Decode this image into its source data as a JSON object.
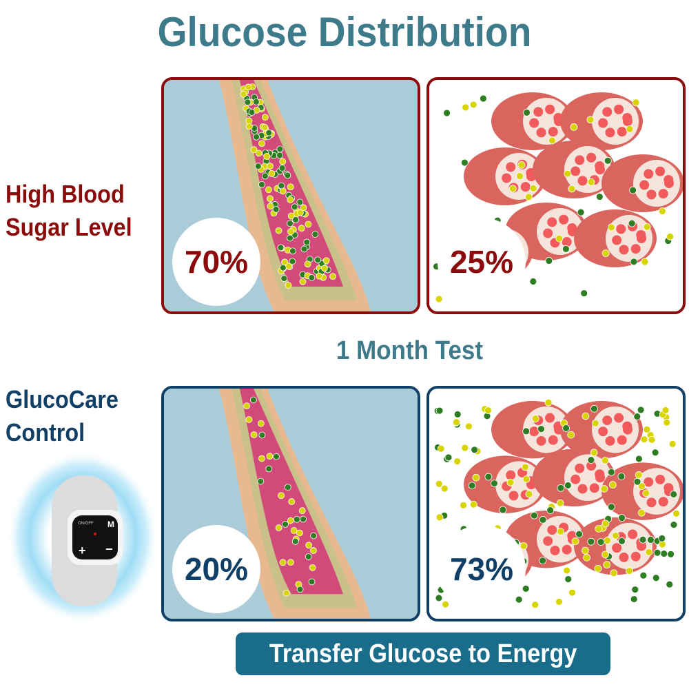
{
  "title": "Glucose Distribution",
  "rows": [
    {
      "label_line1": "High Blood",
      "label_line2": "Sugar Level",
      "color": "#8b0a0a",
      "vessel_pct": "70%",
      "muscle_pct": "25%"
    },
    {
      "label_line1": "GlucoCare",
      "label_line2": "Control",
      "color": "#0f3f66",
      "vessel_pct": "20%",
      "muscle_pct": "73%"
    }
  ],
  "middle_caption": "1 Month Test",
  "banner": "Transfer Glucose to Energy",
  "device": {
    "power_label": "ON/OFF",
    "mode_label": "M",
    "plus_label": "+",
    "minus_label": "−"
  },
  "colors": {
    "title": "#3d7a8a",
    "banner": "#1a6d8a",
    "glucose_yellow": "#d8d400",
    "molecule_green": "#2e7d22"
  }
}
